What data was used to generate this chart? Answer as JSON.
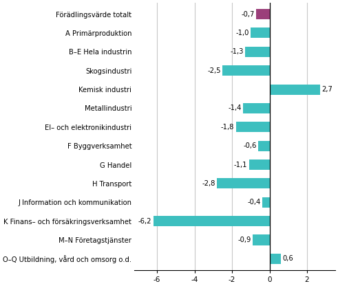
{
  "categories": [
    "Förädlingsvärde totalt",
    "A Primärproduktion",
    "B–E Hela industrin",
    "Skogsindustri",
    "Kemisk industri",
    "Metallindustri",
    "El– och elektronikindustri",
    "F Byggverksamhet",
    "G Handel",
    "H Transport",
    "J Information och kommunikation",
    "K Finans– och försäkringsverksamhet",
    "M–N Företagstjänster",
    "O–Q Utbildning, vård och omsorg o.d."
  ],
  "values": [
    -0.7,
    -1.0,
    -1.3,
    -2.5,
    2.7,
    -1.4,
    -1.8,
    -0.6,
    -1.1,
    -2.8,
    -0.4,
    -6.2,
    -0.9,
    0.6
  ],
  "bar_colors": [
    "#9b3f7a",
    "#3dbfbf",
    "#3dbfbf",
    "#3dbfbf",
    "#3dbfbf",
    "#3dbfbf",
    "#3dbfbf",
    "#3dbfbf",
    "#3dbfbf",
    "#3dbfbf",
    "#3dbfbf",
    "#3dbfbf",
    "#3dbfbf",
    "#3dbfbf"
  ],
  "value_labels": [
    "-0,7",
    "-1,0",
    "-1,3",
    "-2,5",
    "2,7",
    "-1,4",
    "-1,8",
    "-0,6",
    "-1,1",
    "-2,8",
    "-0,4",
    "-6,2",
    "-0,9",
    "0,6"
  ],
  "xlim": [
    -7.2,
    3.5
  ],
  "xticks": [
    -6,
    -4,
    -2,
    0,
    2
  ],
  "xtick_labels": [
    "-6",
    "-4",
    "-2",
    "0",
    "2"
  ],
  "label_fontsize": 7.2,
  "value_fontsize": 7.2,
  "tick_fontsize": 7.5,
  "background_color": "#ffffff",
  "grid_color": "#c8c8c8",
  "bar_height": 0.55
}
